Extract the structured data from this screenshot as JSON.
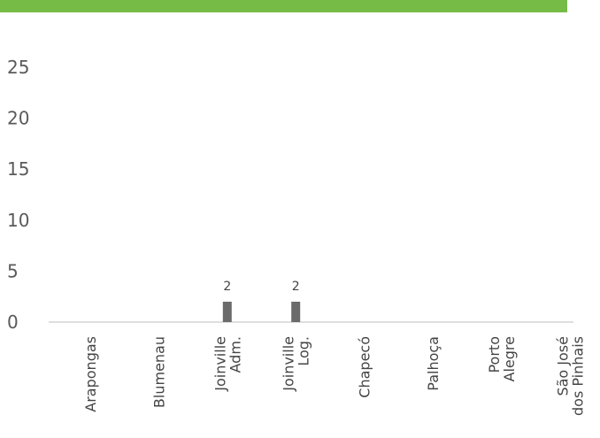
{
  "colors": {
    "accent_bar": "#76bb46",
    "bar": "#6b6b6b",
    "axis": "#bfbfbf"
  },
  "chart_data": {
    "type": "bar",
    "categories": [
      [
        "Arapongas"
      ],
      [
        "Blumenau"
      ],
      [
        "Joinville",
        "Adm."
      ],
      [
        "Joinville",
        "Log."
      ],
      [
        "Chapecó"
      ],
      [
        "Palhoça"
      ],
      [
        "Porto",
        "Alegre"
      ],
      [
        "São José",
        "dos Pinhais"
      ]
    ],
    "values": [
      0,
      0,
      2,
      2,
      0,
      0,
      0,
      0
    ],
    "data_labels": [
      "",
      "",
      "2",
      "2",
      "",
      "",
      "",
      ""
    ],
    "yticks": [
      "0",
      "5",
      "10",
      "15",
      "20",
      "25"
    ],
    "ylim": [
      0,
      25
    ],
    "grid": false,
    "title": "",
    "xlabel": "",
    "ylabel": ""
  }
}
